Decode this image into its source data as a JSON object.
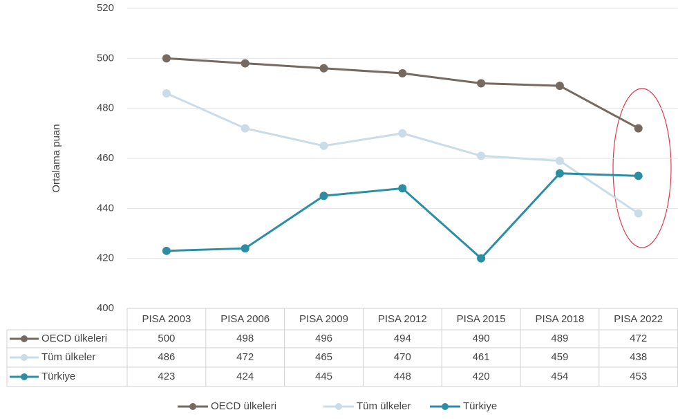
{
  "chart_data": {
    "type": "line",
    "y_label": "Ortalama puan",
    "categories": [
      "PISA 2003",
      "PISA 2006",
      "PISA 2009",
      "PISA 2012",
      "PISA 2015",
      "PISA 2018",
      "PISA 2022"
    ],
    "series": [
      {
        "name": "OECD ülkeleri",
        "color": "#76695f",
        "values": [
          500,
          498,
          496,
          494,
          490,
          489,
          472
        ]
      },
      {
        "name": "Tüm ülkeler",
        "color": "#c9dce7",
        "values": [
          486,
          472,
          465,
          470,
          461,
          459,
          438
        ]
      },
      {
        "name": "Türkiye",
        "color": "#2b8ea3",
        "values": [
          423,
          424,
          445,
          448,
          420,
          454,
          453
        ]
      }
    ],
    "ylim": [
      400,
      520
    ],
    "yticks": [
      400,
      420,
      440,
      460,
      480,
      500,
      520
    ],
    "grid": true
  }
}
